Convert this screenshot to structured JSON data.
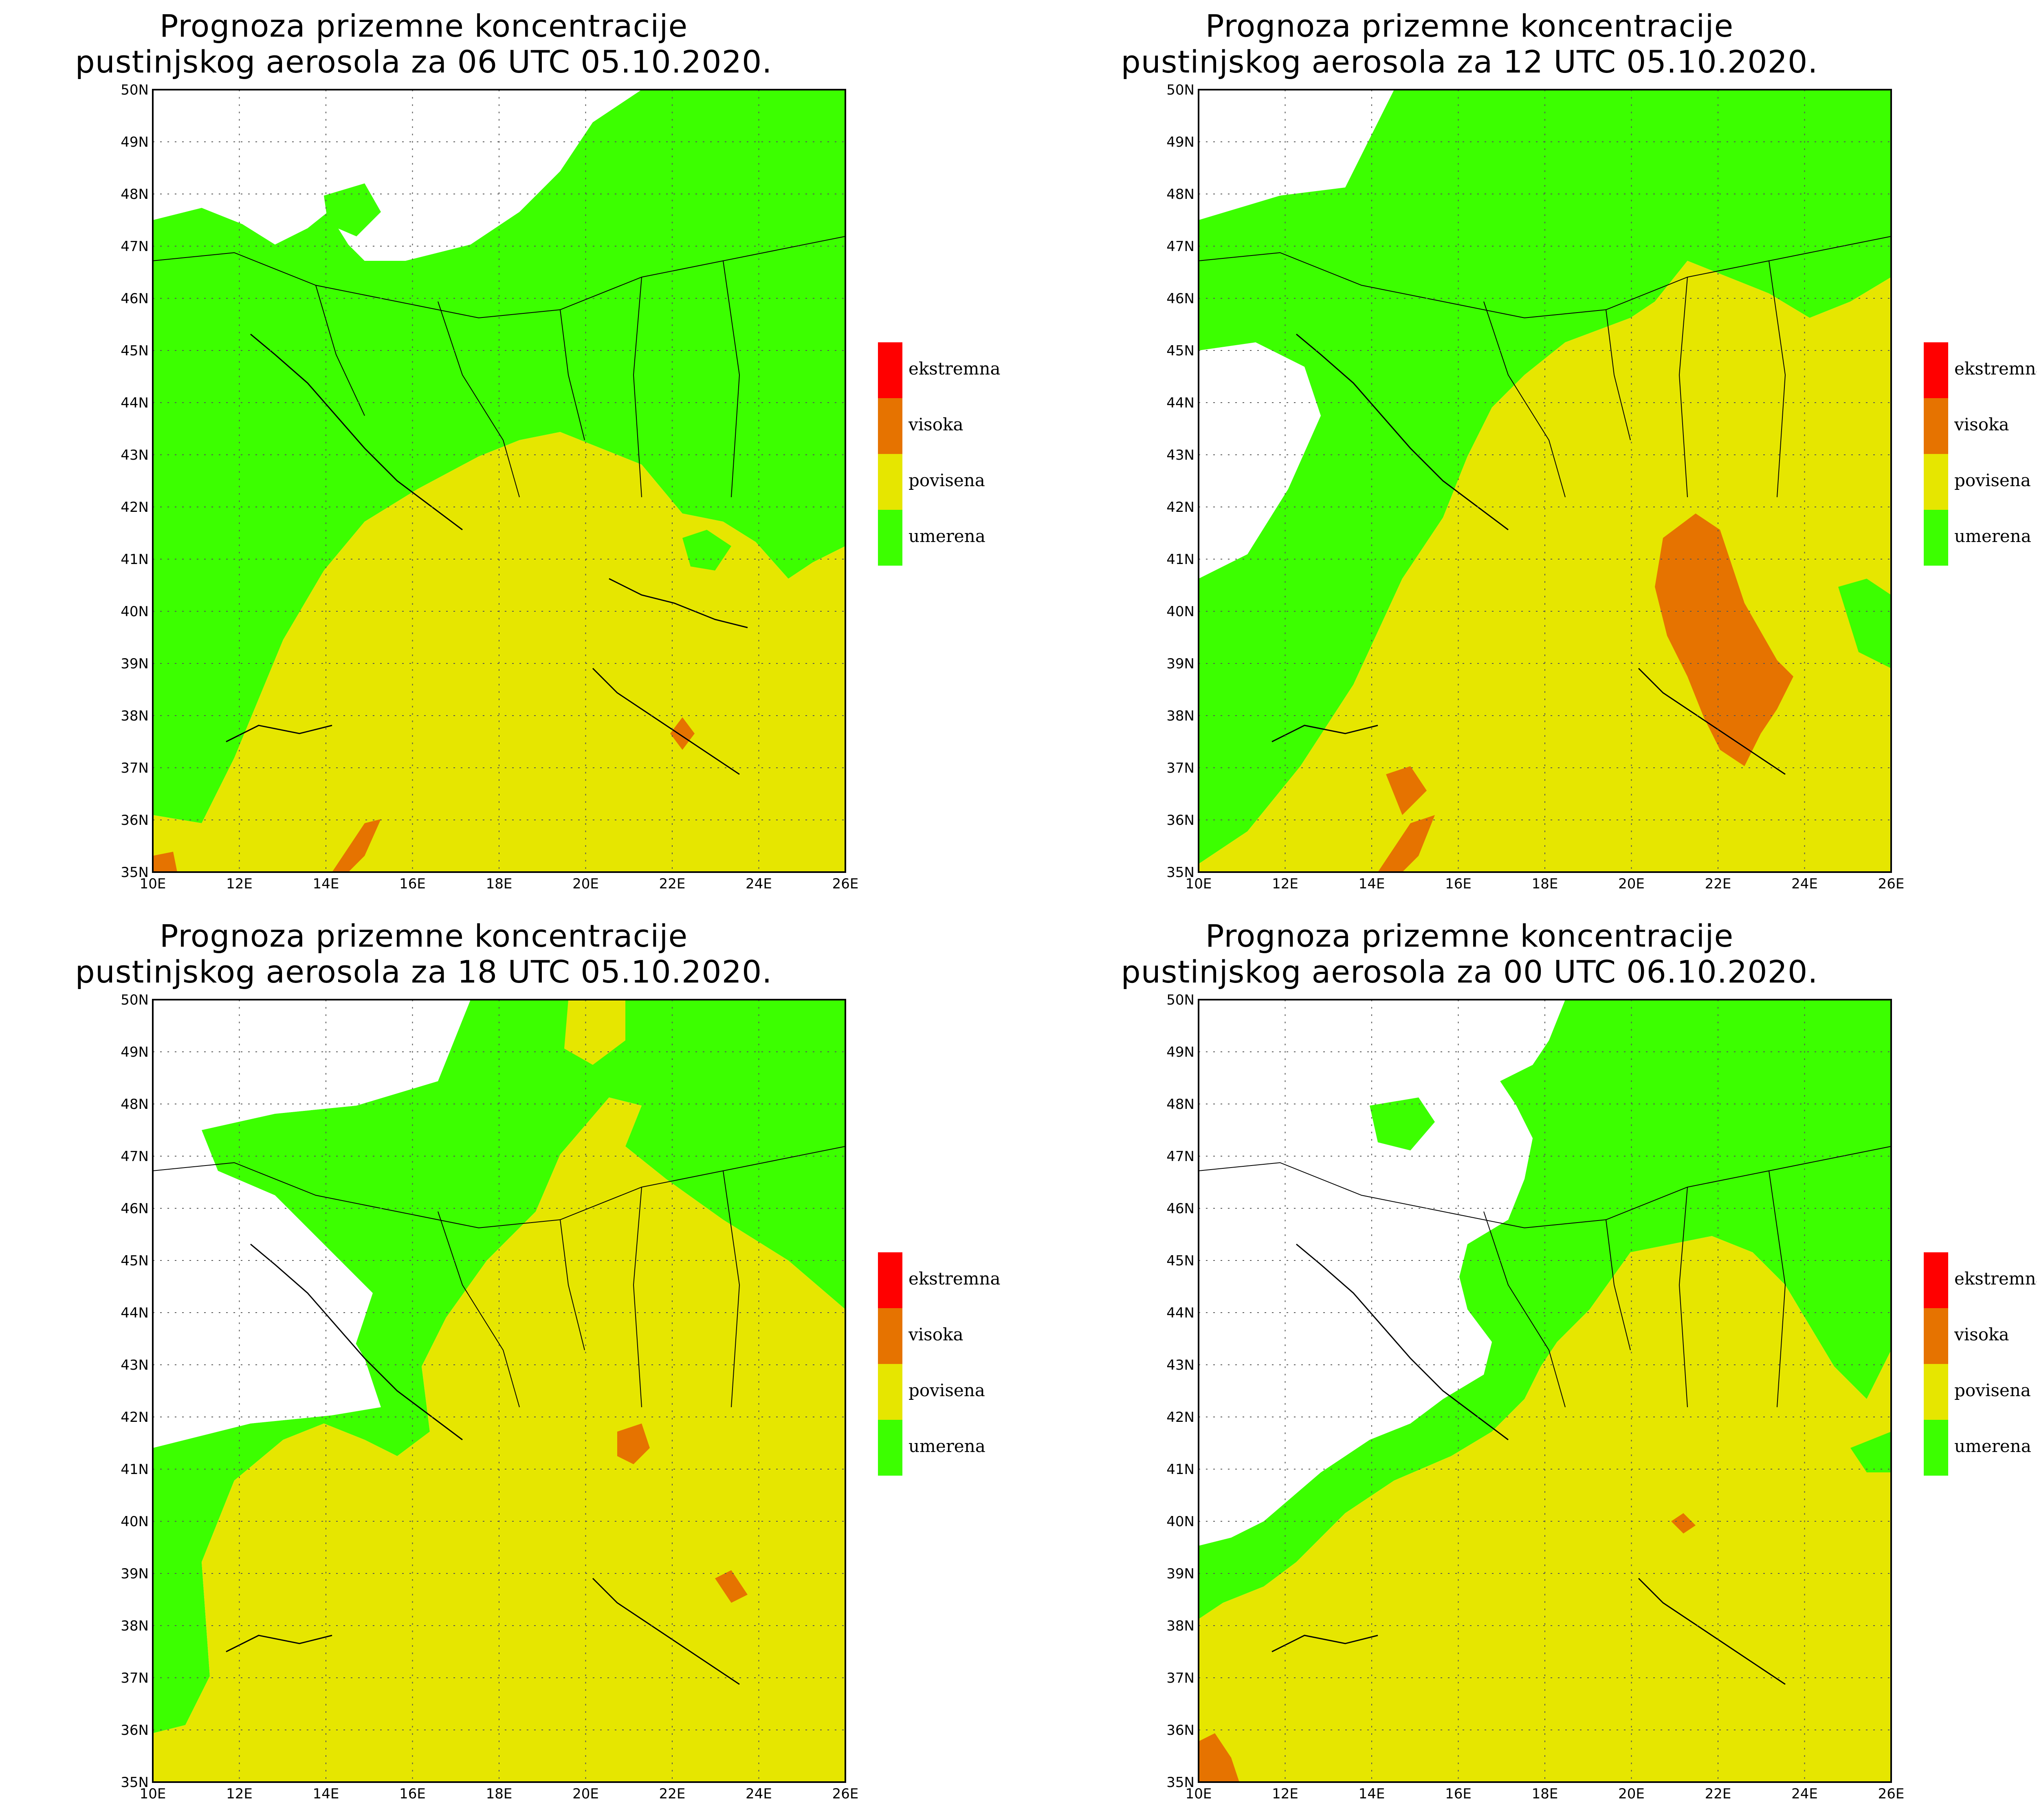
{
  "legend": {
    "items": [
      {
        "label": "ekstremna",
        "color": "#ff0000"
      },
      {
        "label": "visoka",
        "color": "#e67300"
      },
      {
        "label": "povisena",
        "color": "#e6e600"
      },
      {
        "label": "umerena",
        "color": "#3cff00"
      }
    ]
  },
  "axes": {
    "x_ticks": [
      "10E",
      "12E",
      "14E",
      "16E",
      "18E",
      "20E",
      "22E",
      "24E",
      "26E"
    ],
    "y_ticks": [
      "35N",
      "36N",
      "37N",
      "38N",
      "39N",
      "40N",
      "41N",
      "42N",
      "43N",
      "44N",
      "45N",
      "46N",
      "47N",
      "48N",
      "49N",
      "50N"
    ]
  },
  "panels": [
    {
      "title_line1": "Prognoza prizemne koncentracije",
      "title_line2": "pustinjskog aerosola za 06 UTC 05.10.2020."
    },
    {
      "title_line1": "Prognoza prizemne koncentracije",
      "title_line2": "pustinjskog aerosola za 12 UTC 05.10.2020."
    },
    {
      "title_line1": "Prognoza prizemne koncentracije",
      "title_line2": "pustinjskog aerosola za 18 UTC 05.10.2020."
    },
    {
      "title_line1": "Prognoza prizemne koncentracije",
      "title_line2": "pustinjskog aerosola za 00 UTC 06.10.2020."
    }
  ]
}
